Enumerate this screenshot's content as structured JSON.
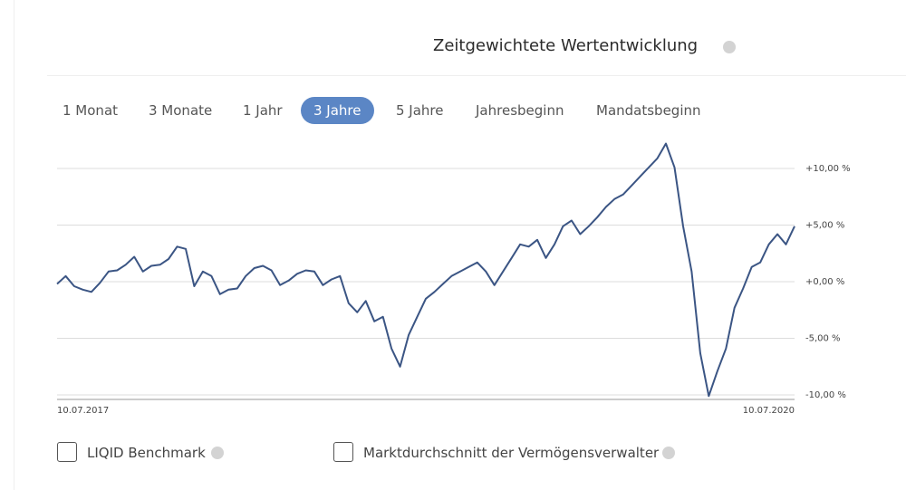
{
  "header": {
    "title": "Zeitgewichtete Wertentwicklung"
  },
  "tabs": [
    {
      "label": "1 Monat",
      "active": false
    },
    {
      "label": "3 Monate",
      "active": false
    },
    {
      "label": "1 Jahr",
      "active": false
    },
    {
      "label": "3 Jahre",
      "active": true
    },
    {
      "label": "5 Jahre",
      "active": false
    },
    {
      "label": "Jahresbeginn",
      "active": false
    },
    {
      "label": "Mandatsbeginn",
      "active": false
    }
  ],
  "checkboxes": [
    {
      "label": "LIQID Benchmark",
      "checked": false
    },
    {
      "label": "Marktdurchschnitt der Vermögensverwalter",
      "checked": false
    }
  ],
  "chart_data": {
    "type": "line",
    "color": "#3b5584",
    "grid": true,
    "categories": [
      "10.07.2017",
      null,
      null,
      null,
      null,
      null,
      null,
      null,
      null,
      null,
      null,
      null,
      null,
      null,
      null,
      null,
      null,
      null,
      null,
      null,
      null,
      null,
      null,
      null,
      null,
      null,
      null,
      null,
      null,
      null,
      null,
      null,
      null,
      null,
      null,
      null,
      null,
      null,
      null,
      null,
      null,
      null,
      null,
      null,
      null,
      null,
      null,
      null,
      null,
      null,
      null,
      null,
      null,
      null,
      null,
      null,
      null,
      null,
      null,
      null,
      null,
      null,
      null,
      null,
      null,
      null,
      null,
      null,
      null,
      null,
      null,
      null,
      null,
      null,
      null,
      null,
      null,
      null,
      null,
      null,
      null,
      null,
      null,
      null,
      null,
      null,
      "10.07.2020"
    ],
    "values": [
      -0.2,
      0.5,
      -0.4,
      -0.7,
      -0.9,
      -0.1,
      0.9,
      1.0,
      1.5,
      2.2,
      0.9,
      1.4,
      1.5,
      2.0,
      3.1,
      2.9,
      -0.4,
      0.9,
      0.5,
      -1.1,
      -0.7,
      -0.6,
      0.5,
      1.2,
      1.4,
      1.0,
      -0.3,
      0.1,
      0.7,
      1.0,
      0.9,
      -0.3,
      0.2,
      0.5,
      -1.9,
      -2.7,
      -1.7,
      -3.5,
      -3.1,
      -5.9,
      -7.5,
      -4.7,
      -3.1,
      -1.5,
      -0.9,
      -0.2,
      0.5,
      0.9,
      1.3,
      1.7,
      0.9,
      -0.3,
      0.9,
      2.1,
      3.3,
      3.1,
      3.7,
      2.1,
      3.3,
      4.9,
      5.4,
      4.2,
      4.9,
      5.7,
      6.6,
      7.3,
      7.7,
      8.5,
      9.3,
      10.1,
      10.9,
      12.2,
      10.1,
      4.9,
      0.9,
      -6.3,
      -10.1,
      -7.9,
      -5.9,
      -2.3,
      -0.6,
      1.3,
      1.7,
      3.3,
      4.2,
      3.3,
      4.9
    ],
    "ylim": [
      -10.4,
      12.8
    ],
    "yticks": [
      {
        "value": 10,
        "label": "+10,00 %"
      },
      {
        "value": 5,
        "label": "+5,00 %"
      },
      {
        "value": 0,
        "label": "+0,00 %"
      },
      {
        "value": -5,
        "label": "-5,00 %"
      },
      {
        "value": -10,
        "label": "-10,00 %"
      }
    ]
  }
}
